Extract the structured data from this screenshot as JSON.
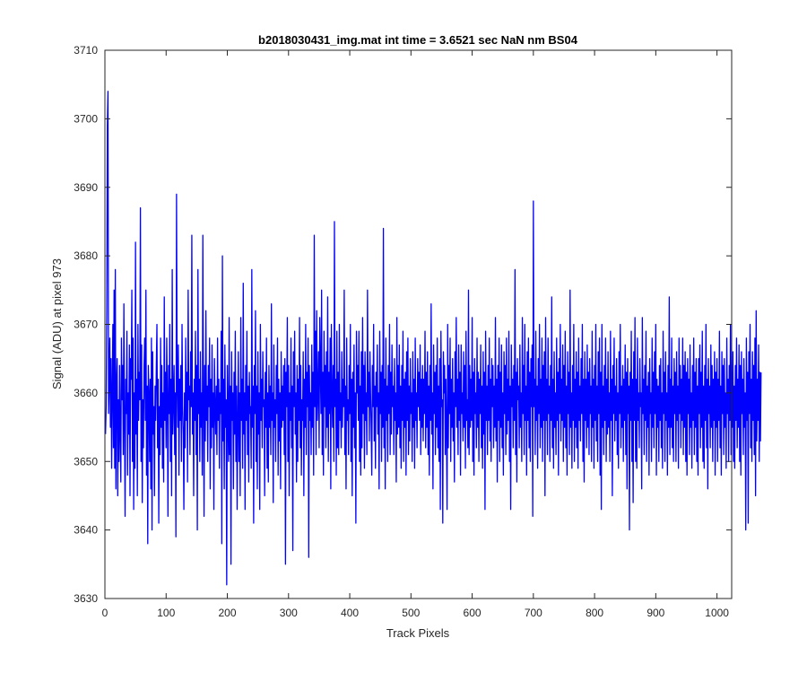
{
  "chart_data": {
    "type": "line",
    "title": "b2018030431_img.mat int time = 3.6521 sec  NaN nm BS04",
    "xlabel": "Track Pixels",
    "ylabel": "Signal (ADU) at pixel 973",
    "xlim": [
      0,
      1024
    ],
    "ylim": [
      3630,
      3710
    ],
    "xticks": [
      0,
      100,
      200,
      300,
      400,
      500,
      600,
      700,
      800,
      900,
      1000
    ],
    "yticks": [
      3630,
      3640,
      3650,
      3660,
      3670,
      3680,
      3690,
      3700,
      3710
    ],
    "grid": false,
    "legend": "none",
    "series_color": "#0000ff",
    "series": [
      {
        "x_start": 1,
        "x_step": 1,
        "values": [
          3654,
          3658,
          3672,
          3699,
          3704,
          3657,
          3662,
          3668,
          3655,
          3665,
          3649,
          3660,
          3670,
          3652,
          3675,
          3649,
          3678,
          3646,
          3661,
          3665,
          3645,
          3659,
          3650,
          3664,
          3654,
          3647,
          3668,
          3659,
          3664,
          3651,
          3673,
          3656,
          3642,
          3662,
          3657,
          3669,
          3648,
          3660,
          3654,
          3667,
          3645,
          3665,
          3662,
          3675,
          3650,
          3668,
          3643,
          3660,
          3649,
          3682,
          3654,
          3662,
          3645,
          3670,
          3656,
          3663,
          3659,
          3687,
          3650,
          3667,
          3644,
          3659,
          3652,
          3664,
          3668,
          3656,
          3675,
          3648,
          3661,
          3638,
          3664,
          3660,
          3650,
          3662,
          3646,
          3668,
          3640,
          3666,
          3654,
          3658,
          3645,
          3661,
          3656,
          3664,
          3670,
          3652,
          3662,
          3641,
          3658,
          3651,
          3668,
          3655,
          3664,
          3649,
          3660,
          3647,
          3674,
          3656,
          3663,
          3652,
          3668,
          3659,
          3642,
          3664,
          3657,
          3670,
          3650,
          3662,
          3645,
          3678,
          3654,
          3659,
          3664,
          3651,
          3660,
          3639,
          3689,
          3662,
          3655,
          3667,
          3648,
          3662,
          3656,
          3664,
          3650,
          3670,
          3658,
          3654,
          3643,
          3660,
          3652,
          3668,
          3656,
          3663,
          3647,
          3675,
          3659,
          3661,
          3651,
          3666,
          3658,
          3683,
          3654,
          3660,
          3645,
          3662,
          3656,
          3669,
          3651,
          3664,
          3640,
          3678,
          3657,
          3662,
          3650,
          3666,
          3655,
          3660,
          3648,
          3683,
          3659,
          3642,
          3664,
          3653,
          3672,
          3656,
          3661,
          3650,
          3664,
          3658,
          3668,
          3646,
          3662,
          3652,
          3667,
          3655,
          3660,
          3643,
          3665,
          3658,
          3654,
          3661,
          3651,
          3668,
          3656,
          3662,
          3649,
          3660,
          3657,
          3669,
          3638,
          3680,
          3653,
          3662,
          3646,
          3667,
          3655,
          3659,
          3632,
          3664,
          3657,
          3650,
          3671,
          3651,
          3661,
          3635,
          3666,
          3656,
          3660,
          3646,
          3663,
          3654,
          3669,
          3650,
          3661,
          3643,
          3656,
          3666,
          3650,
          3660,
          3645,
          3671,
          3656,
          3662,
          3649,
          3676,
          3654,
          3660,
          3643,
          3664,
          3656,
          3669,
          3651,
          3661,
          3647,
          3663,
          3657,
          3658,
          3649,
          3678,
          3655,
          3661,
          3641,
          3664,
          3657,
          3672,
          3650,
          3661,
          3646,
          3666,
          3654,
          3660,
          3643,
          3670,
          3656,
          3662,
          3652,
          3666,
          3658,
          3659,
          3645,
          3663,
          3655,
          3668,
          3649,
          3660,
          3647,
          3664,
          3655,
          3661,
          3651,
          3673,
          3656,
          3660,
          3644,
          3667,
          3655,
          3659,
          3650,
          3664,
          3657,
          3668,
          3648,
          3662,
          3653,
          3660,
          3646,
          3666,
          3655,
          3661,
          3656,
          3664,
          3651,
          3665,
          3635,
          3663,
          3658,
          3671,
          3650,
          3664,
          3645,
          3660,
          3656,
          3668,
          3652,
          3661,
          3637,
          3666,
          3658,
          3669,
          3654,
          3660,
          3647,
          3664,
          3650,
          3662,
          3656,
          3671,
          3652,
          3664,
          3648,
          3659,
          3656,
          3666,
          3645,
          3662,
          3655,
          3670,
          3651,
          3663,
          3658,
          3668,
          3636,
          3664,
          3656,
          3660,
          3651,
          3667,
          3655,
          3663,
          3648,
          3683,
          3658,
          3669,
          3651,
          3672,
          3656,
          3660,
          3666,
          3652,
          3671,
          3664,
          3657,
          3675,
          3651,
          3663,
          3648,
          3669,
          3658,
          3664,
          3652,
          3666,
          3655,
          3674,
          3650,
          3663,
          3657,
          3668,
          3646,
          3670,
          3660,
          3655,
          3664,
          3650,
          3685,
          3658,
          3662,
          3648,
          3669,
          3652,
          3663,
          3651,
          3670,
          3656,
          3660,
          3652,
          3666,
          3655,
          3662,
          3658,
          3675,
          3651,
          3661,
          3646,
          3668,
          3656,
          3659,
          3651,
          3664,
          3657,
          3670,
          3650,
          3662,
          3645,
          3663,
          3655,
          3667,
          3652,
          3660,
          3641,
          3669,
          3660,
          3664,
          3656,
          3669,
          3650,
          3661,
          3648,
          3666,
          3652,
          3671,
          3657,
          3664,
          3649,
          3666,
          3656,
          3660,
          3651,
          3675,
          3658,
          3663,
          3653,
          3666,
          3660,
          3655,
          3648,
          3664,
          3658,
          3670,
          3653,
          3661,
          3649,
          3663,
          3658,
          3667,
          3654,
          3660,
          3646,
          3669,
          3657,
          3663,
          3650,
          3664,
          3655,
          3684,
          3652,
          3662,
          3646,
          3668,
          3656,
          3661,
          3650,
          3664,
          3657,
          3670,
          3651,
          3663,
          3654,
          3667,
          3658,
          3661,
          3651,
          3665,
          3656,
          3660,
          3647,
          3671,
          3654,
          3664,
          3655,
          3667,
          3652,
          3661,
          3649,
          3664,
          3656,
          3669,
          3650,
          3662,
          3655,
          3663,
          3648,
          3666,
          3656,
          3668,
          3651,
          3661,
          3653,
          3665,
          3657,
          3660,
          3650,
          3666,
          3655,
          3662,
          3649,
          3668,
          3656,
          3660,
          3652,
          3665,
          3658,
          3663,
          3656,
          3667,
          3651,
          3662,
          3655,
          3664,
          3653,
          3662,
          3657,
          3669,
          3652,
          3663,
          3655,
          3666,
          3651,
          3661,
          3648,
          3664,
          3656,
          3673,
          3654,
          3660,
          3646,
          3667,
          3657,
          3663,
          3651,
          3664,
          3655,
          3668,
          3652,
          3661,
          3650,
          3665,
          3643,
          3669,
          3658,
          3659,
          3641,
          3666,
          3660,
          3664,
          3651,
          3662,
          3655,
          3643,
          3670,
          3652,
          3664,
          3657,
          3668,
          3650,
          3662,
          3655,
          3665,
          3653,
          3660,
          3647,
          3666,
          3658,
          3671,
          3655,
          3662,
          3651,
          3667,
          3656,
          3663,
          3648,
          3667,
          3657,
          3660,
          3653,
          3666,
          3655,
          3664,
          3649,
          3669,
          3656,
          3659,
          3652,
          3675,
          3651,
          3664,
          3655,
          3662,
          3656,
          3671,
          3650,
          3663,
          3648,
          3665,
          3657,
          3660,
          3652,
          3668,
          3655,
          3663,
          3650,
          3662,
          3657,
          3667,
          3652,
          3661,
          3649,
          3666,
          3654,
          3663,
          3643,
          3669,
          3656,
          3661,
          3651,
          3664,
          3656,
          3668,
          3653,
          3662,
          3650,
          3665,
          3658,
          3664,
          3652,
          3661,
          3655,
          3671,
          3653,
          3662,
          3647,
          3664,
          3656,
          3668,
          3650,
          3663,
          3655,
          3667,
          3652,
          3660,
          3648,
          3666,
          3657,
          3664,
          3651,
          3668,
          3654,
          3662,
          3656,
          3669,
          3650,
          3661,
          3643,
          3667,
          3658,
          3662,
          3652,
          3664,
          3656,
          3678,
          3651,
          3663,
          3647,
          3665,
          3659,
          3661,
          3652,
          3667,
          3655,
          3660,
          3650,
          3671,
          3657,
          3664,
          3651,
          3670,
          3656,
          3661,
          3648,
          3666,
          3656,
          3668,
          3652,
          3663,
          3650,
          3665,
          3658,
          3667,
          3642,
          3688,
          3658,
          3662,
          3651,
          3669,
          3656,
          3661,
          3649,
          3665,
          3657,
          3670,
          3652,
          3662,
          3655,
          3668,
          3650,
          3664,
          3656,
          3666,
          3645,
          3671,
          3656,
          3662,
          3651,
          3668,
          3657,
          3661,
          3650,
          3664,
          3656,
          3674,
          3652,
          3662,
          3649,
          3666,
          3655,
          3660,
          3651,
          3668,
          3656,
          3663,
          3648,
          3665,
          3657,
          3670,
          3653,
          3662,
          3656,
          3667,
          3650,
          3664,
          3655,
          3669,
          3652,
          3661,
          3648,
          3666,
          3657,
          3663,
          3651,
          3675,
          3655,
          3660,
          3649,
          3664,
          3656,
          3670,
          3650,
          3662,
          3655,
          3666,
          3652,
          3663,
          3649,
          3668,
          3656,
          3661,
          3653,
          3665,
          3657,
          3670,
          3650,
          3662,
          3647,
          3666,
          3656,
          3662,
          3652,
          3667,
          3655,
          3663,
          3651,
          3665,
          3657,
          3661,
          3650,
          3669,
          3655,
          3662,
          3649,
          3664,
          3656,
          3670,
          3653,
          3661,
          3650,
          3666,
          3657,
          3668,
          3648,
          3663,
          3643,
          3670,
          3655,
          3661,
          3651,
          3664,
          3656,
          3668,
          3650,
          3662,
          3654,
          3666,
          3655,
          3660,
          3650,
          3669,
          3656,
          3662,
          3645,
          3664,
          3657,
          3668,
          3653,
          3661,
          3656,
          3665,
          3651,
          3660,
          3649,
          3666,
          3657,
          3670,
          3652,
          3661,
          3655,
          3664,
          3650,
          3662,
          3656,
          3667,
          3651,
          3663,
          3646,
          3665,
          3657,
          3661,
          3640,
          3663,
          3656,
          3669,
          3650,
          3662,
          3644,
          3666,
          3656,
          3671,
          3650,
          3662,
          3649,
          3668,
          3656,
          3660,
          3652,
          3665,
          3658,
          3660,
          3646,
          3671,
          3657,
          3662,
          3651,
          3664,
          3656,
          3669,
          3650,
          3661,
          3655,
          3663,
          3648,
          3665,
          3657,
          3660,
          3650,
          3668,
          3655,
          3663,
          3652,
          3666,
          3657,
          3670,
          3648,
          3662,
          3655,
          3661,
          3650,
          3664,
          3656,
          3665,
          3652,
          3660,
          3649,
          3669,
          3657,
          3663,
          3650,
          3666,
          3656,
          3660,
          3648,
          3664,
          3655,
          3674,
          3651,
          3662,
          3655,
          3668,
          3652,
          3661,
          3650,
          3665,
          3657,
          3663,
          3650,
          3666,
          3656,
          3661,
          3649,
          3668,
          3657,
          3664,
          3652,
          3662,
          3656,
          3668,
          3651,
          3664,
          3655,
          3666,
          3650,
          3663,
          3648,
          3665,
          3657,
          3662,
          3651,
          3667,
          3655,
          3660,
          3649,
          3664,
          3656,
          3668,
          3651,
          3663,
          3655,
          3665,
          3650,
          3661,
          3648,
          3665,
          3657,
          3667,
          3652,
          3663,
          3655,
          3669,
          3650,
          3661,
          3649,
          3664,
          3656,
          3670,
          3652,
          3662,
          3646,
          3665,
          3657,
          3661,
          3652,
          3667,
          3655,
          3664,
          3650,
          3662,
          3656,
          3666,
          3648,
          3663,
          3655,
          3665,
          3650,
          3662,
          3656,
          3669,
          3652,
          3661,
          3648,
          3666,
          3657,
          3664,
          3651,
          3665,
          3655,
          3660,
          3649,
          3668,
          3657,
          3662,
          3650,
          3664,
          3656,
          3670,
          3651,
          3663,
          3655,
          3666,
          3650,
          3661,
          3649,
          3664,
          3656,
          3668,
          3652,
          3662,
          3655,
          3667,
          3650,
          3664,
          3648,
          3666,
          3657,
          3662,
          3651,
          3665,
          3655,
          3660,
          3640,
          3668,
          3656,
          3663,
          3641,
          3666,
          3657,
          3670,
          3652,
          3662,
          3650,
          3666,
          3656,
          3664,
          3651,
          3668,
          3645,
          3672,
          3653,
          3662,
          3656,
          3667,
          3650,
          3663,
          3653,
          3663
        ]
      }
    ]
  }
}
